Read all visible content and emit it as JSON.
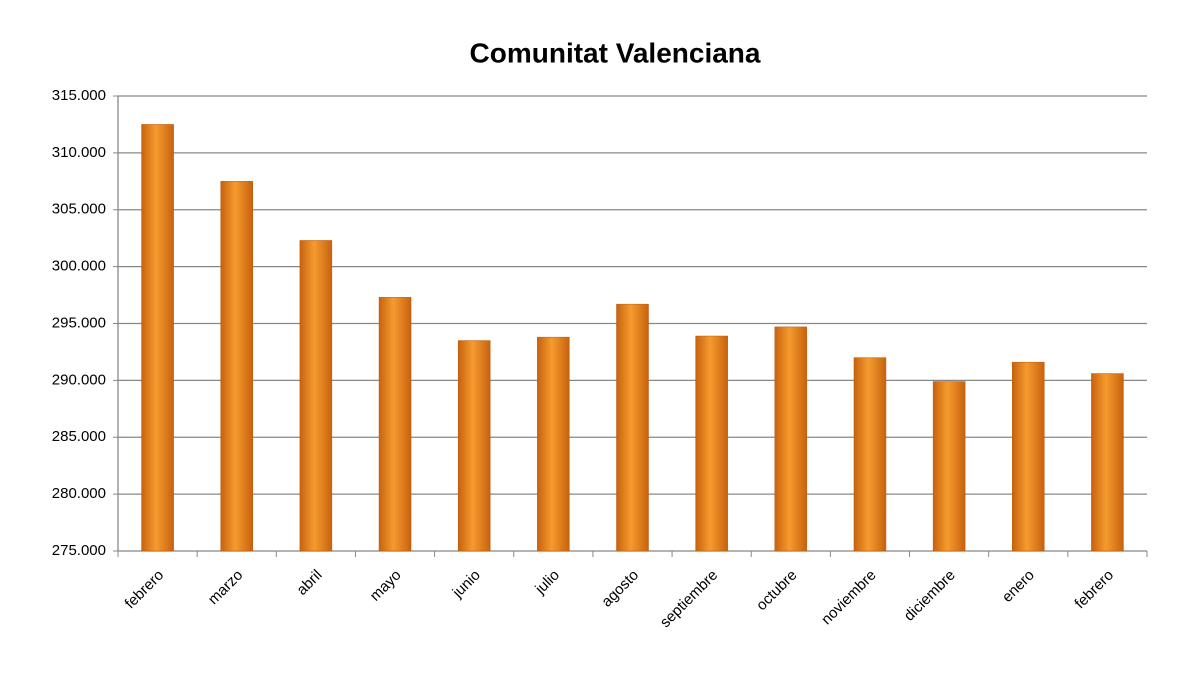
{
  "chart_data": {
    "type": "bar",
    "title": "Comunitat Valenciana",
    "categories": [
      "febrero",
      "marzo",
      "abril",
      "mayo",
      "junio",
      "julio",
      "agosto",
      "septiembre",
      "octubre",
      "noviembre",
      "diciembre",
      "enero",
      "febrero"
    ],
    "values": [
      312500,
      307500,
      302300,
      297300,
      293500,
      293800,
      296700,
      293900,
      294700,
      292000,
      289900,
      291600,
      290600
    ],
    "color": "#f59b2e",
    "ylim": [
      275000,
      315000
    ],
    "yticks": [
      {
        "value": 275000,
        "label": "275.000"
      },
      {
        "value": 280000,
        "label": "280.000"
      },
      {
        "value": 285000,
        "label": "285.000"
      },
      {
        "value": 290000,
        "label": "290.000"
      },
      {
        "value": 295000,
        "label": "295.000"
      },
      {
        "value": 300000,
        "label": "300.000"
      },
      {
        "value": 305000,
        "label": "305.000"
      },
      {
        "value": 310000,
        "label": "310.000"
      },
      {
        "value": 315000,
        "label": "315.000"
      }
    ],
    "grid": true
  }
}
